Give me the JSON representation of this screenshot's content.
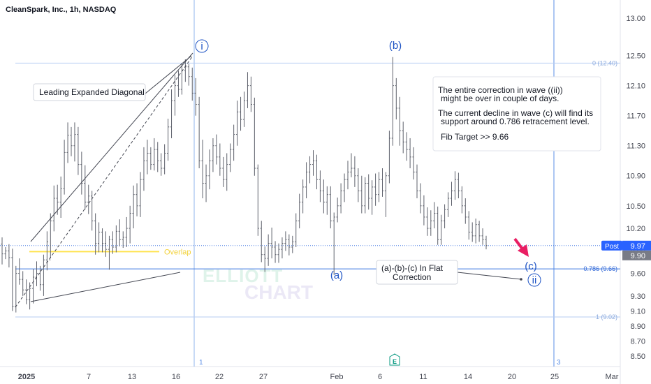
{
  "chart_data": {
    "type": "bar",
    "title": "CleanSpark, Inc., 1h, NASDAQ",
    "price_axis": {
      "ylim": [
        8.36,
        13.24
      ],
      "ticks": [
        "13.00",
        "12.50",
        "12.10",
        "11.70",
        "11.30",
        "10.90",
        "10.50",
        "10.20",
        "9.90",
        "9.60",
        "9.30",
        "9.10",
        "8.90",
        "8.70",
        "8.50"
      ],
      "tick_values": [
        13.0,
        12.5,
        12.1,
        11.7,
        11.3,
        10.9,
        10.5,
        10.2,
        9.9,
        9.6,
        9.3,
        9.1,
        8.9,
        8.7,
        8.5
      ]
    },
    "time_axis": {
      "ticks": [
        "2025",
        "7",
        "13",
        "16",
        "22",
        "27",
        "Feb",
        "6",
        "11",
        "14",
        "20",
        "25",
        "Mar"
      ],
      "bold_tick": "2025"
    },
    "price_badges": [
      {
        "label": "Post",
        "value": "9.97",
        "price": 9.97,
        "color": "#2962ff"
      },
      {
        "label": "",
        "value": "9.90",
        "price": 9.9,
        "color": "#787b86"
      }
    ],
    "fib_levels": [
      {
        "label": "0 (12.40)",
        "price": 12.4
      },
      {
        "label": "0.786 (9.66)",
        "price": 9.66
      },
      {
        "label": "1 (9.02)",
        "price": 9.02
      }
    ],
    "overlap": {
      "label": "Overlap",
      "price": 9.89,
      "color": "#ffe34d"
    },
    "wave_labels": [
      {
        "text": "i",
        "circled": true,
        "price": 12.62,
        "bar": 56
      },
      {
        "text": "(b)",
        "circled": false,
        "price": 12.62,
        "bar": 113
      },
      {
        "text": "(a)",
        "circled": false,
        "price": 9.46,
        "bar": 97
      },
      {
        "text": "(c)",
        "circled": false,
        "price": 9.57,
        "bar": 153
      },
      {
        "text": "ii",
        "circled": true,
        "price": 9.38,
        "bar": 154
      }
    ],
    "annotations": {
      "diagonal_label": "Leading Expanded Diagonal",
      "flat_label_line1": "(a)-(b)-(c) In Flat",
      "flat_label_line2": "Correction",
      "note_lines": [
        "The entire correction in wave ((ii))",
        "might be over in couple of days.",
        "The current decline in wave (c) will find its",
        "support around 0.786 retracement level.",
        "Fib Target >> 9.66"
      ],
      "vline_labels": [
        "1",
        "3"
      ],
      "earnings_marker": "E"
    },
    "watermark": {
      "line1": "ELLIOTT",
      "line2": "CHART"
    },
    "bars": [
      [
        9.99,
        10.08,
        9.72,
        9.86
      ],
      [
        9.86,
        9.95,
        9.79,
        9.9
      ],
      [
        9.9,
        9.99,
        9.68,
        9.81
      ],
      [
        9.81,
        9.93,
        9.1,
        9.16
      ],
      [
        9.16,
        9.7,
        9.08,
        9.6
      ],
      [
        9.6,
        9.8,
        9.45,
        9.52
      ],
      [
        9.52,
        9.63,
        9.3,
        9.38
      ],
      [
        9.38,
        9.52,
        9.19,
        9.25
      ],
      [
        9.25,
        9.48,
        9.12,
        9.4
      ],
      [
        9.4,
        9.66,
        9.2,
        9.55
      ],
      [
        9.55,
        9.76,
        9.43,
        9.6
      ],
      [
        9.6,
        9.7,
        9.37,
        9.45
      ],
      [
        9.45,
        9.85,
        9.3,
        9.78
      ],
      [
        9.78,
        10.16,
        9.64,
        10.02
      ],
      [
        9.78,
        10.4,
        9.8,
        10.3
      ],
      [
        10.3,
        10.77,
        10.16,
        10.6
      ],
      [
        10.6,
        10.78,
        10.38,
        10.55
      ],
      [
        10.55,
        10.89,
        10.34,
        10.73
      ],
      [
        10.73,
        11.38,
        10.65,
        11.21
      ],
      [
        11.21,
        11.61,
        11.07,
        11.44
      ],
      [
        11.44,
        11.55,
        11.16,
        11.3
      ],
      [
        11.3,
        11.61,
        11.09,
        11.45
      ],
      [
        11.45,
        11.55,
        10.91,
        11.05
      ],
      [
        11.05,
        11.22,
        10.65,
        10.8
      ],
      [
        10.8,
        11.04,
        10.45,
        10.55
      ],
      [
        10.55,
        10.78,
        10.39,
        10.63
      ],
      [
        10.63,
        10.7,
        10.17,
        10.3
      ],
      [
        10.3,
        10.4,
        9.85,
        10.0
      ],
      [
        10.0,
        10.28,
        9.88,
        10.15
      ],
      [
        10.15,
        10.2,
        9.88,
        10.0
      ],
      [
        10.0,
        10.16,
        9.82,
        9.92
      ],
      [
        9.92,
        10.1,
        9.65,
        10.05
      ],
      [
        10.05,
        10.16,
        9.86,
        9.95
      ],
      [
        9.95,
        10.24,
        9.88,
        10.16
      ],
      [
        10.16,
        10.32,
        9.96,
        10.05
      ],
      [
        10.05,
        10.16,
        9.94,
        10.08
      ],
      [
        10.08,
        10.35,
        9.95,
        10.2
      ],
      [
        10.2,
        10.5,
        10.0,
        10.4
      ],
      [
        10.4,
        10.77,
        10.2,
        10.65
      ],
      [
        10.65,
        10.8,
        10.36,
        10.5
      ],
      [
        10.5,
        10.95,
        10.35,
        10.85
      ],
      [
        10.85,
        11.28,
        10.7,
        11.1
      ],
      [
        11.1,
        11.38,
        10.92,
        11.2
      ],
      [
        11.2,
        11.28,
        10.98,
        11.05
      ],
      [
        11.05,
        11.4,
        10.97,
        11.25
      ],
      [
        11.25,
        11.35,
        10.95,
        11.1
      ],
      [
        11.1,
        11.2,
        10.9,
        11.0
      ],
      [
        11.0,
        11.32,
        10.92,
        11.2
      ],
      [
        11.2,
        11.66,
        11.1,
        11.55
      ],
      [
        11.55,
        12.05,
        11.4,
        11.9
      ],
      [
        11.9,
        12.24,
        11.7,
        12.1
      ],
      [
        12.1,
        12.3,
        11.95,
        12.05
      ],
      [
        12.05,
        12.4,
        11.98,
        12.3
      ],
      [
        12.3,
        12.45,
        12.15,
        12.35
      ],
      [
        12.35,
        12.39,
        12.1,
        12.22
      ],
      [
        12.22,
        12.34,
        11.9,
        12.0
      ],
      [
        12.0,
        12.2,
        11.7,
        11.85
      ],
      [
        11.85,
        11.95,
        11.0,
        11.1
      ],
      [
        11.1,
        11.38,
        10.6,
        10.8
      ],
      [
        10.8,
        11.05,
        10.55,
        10.9
      ],
      [
        10.9,
        11.25,
        10.72,
        11.1
      ],
      [
        11.1,
        11.4,
        10.95,
        11.3
      ],
      [
        11.3,
        11.45,
        11.05,
        11.15
      ],
      [
        11.15,
        11.33,
        10.9,
        11.0
      ],
      [
        11.0,
        11.15,
        10.75,
        10.85
      ],
      [
        10.85,
        11.2,
        10.7,
        11.05
      ],
      [
        11.05,
        11.33,
        10.95,
        11.25
      ],
      [
        11.25,
        11.58,
        11.1,
        11.45
      ],
      [
        11.45,
        11.9,
        11.3,
        11.75
      ],
      [
        11.75,
        11.95,
        11.5,
        11.65
      ],
      [
        11.65,
        12.02,
        11.55,
        11.9
      ],
      [
        11.9,
        12.28,
        11.8,
        12.1
      ],
      [
        12.1,
        12.22,
        11.75,
        11.85
      ],
      [
        11.85,
        11.94,
        10.9,
        11.0
      ],
      [
        11.0,
        11.05,
        10.1,
        10.2
      ],
      [
        10.2,
        10.3,
        9.75,
        9.85
      ],
      [
        9.85,
        9.96,
        9.62,
        9.8
      ],
      [
        9.8,
        10.12,
        9.7,
        10.0
      ],
      [
        10.0,
        10.21,
        9.8,
        9.95
      ],
      [
        9.95,
        10.03,
        9.74,
        9.85
      ],
      [
        9.85,
        10.0,
        9.74,
        9.92
      ],
      [
        9.92,
        10.08,
        9.8,
        10.0
      ],
      [
        10.0,
        10.16,
        9.9,
        10.05
      ],
      [
        10.05,
        10.12,
        9.84,
        9.95
      ],
      [
        9.95,
        10.1,
        9.87,
        10.02
      ],
      [
        10.02,
        10.4,
        9.95,
        10.3
      ],
      [
        10.3,
        10.66,
        10.2,
        10.55
      ],
      [
        10.55,
        10.85,
        10.4,
        10.75
      ],
      [
        10.75,
        11.08,
        10.6,
        10.95
      ],
      [
        10.95,
        11.16,
        10.8,
        11.05
      ],
      [
        11.05,
        11.24,
        10.9,
        11.1
      ],
      [
        11.1,
        11.18,
        10.72,
        10.85
      ],
      [
        10.85,
        10.97,
        10.55,
        10.7
      ],
      [
        10.7,
        10.85,
        10.4,
        10.55
      ],
      [
        10.55,
        10.76,
        10.38,
        10.65
      ],
      [
        10.65,
        10.76,
        10.2,
        10.3
      ],
      [
        10.3,
        10.41,
        9.58,
        10.35
      ],
      [
        10.35,
        10.61,
        10.28,
        10.5
      ],
      [
        10.5,
        10.8,
        10.4,
        10.7
      ],
      [
        10.7,
        10.93,
        10.55,
        10.85
      ],
      [
        10.85,
        11.1,
        10.72,
        10.95
      ],
      [
        10.95,
        11.2,
        10.88,
        11.0
      ],
      [
        11.0,
        11.16,
        10.75,
        10.9
      ],
      [
        10.9,
        11.0,
        10.55,
        10.7
      ],
      [
        10.7,
        10.9,
        10.4,
        10.5
      ],
      [
        10.5,
        10.88,
        10.4,
        10.8
      ],
      [
        10.8,
        10.92,
        10.45,
        10.6
      ],
      [
        10.6,
        10.84,
        10.38,
        10.75
      ],
      [
        10.75,
        10.93,
        10.5,
        10.65
      ],
      [
        10.65,
        10.95,
        10.55,
        10.85
      ],
      [
        10.85,
        11.0,
        10.62,
        10.7
      ],
      [
        10.7,
        10.95,
        10.35,
        10.9
      ],
      [
        10.9,
        11.5,
        10.8,
        11.4
      ],
      [
        11.4,
        12.48,
        11.3,
        12.1
      ],
      [
        12.1,
        12.2,
        11.65,
        11.8
      ],
      [
        11.8,
        11.95,
        11.3,
        11.5
      ],
      [
        11.5,
        11.62,
        11.2,
        11.35
      ],
      [
        11.35,
        11.48,
        11.1,
        11.25
      ],
      [
        11.25,
        11.4,
        11.0,
        11.15
      ],
      [
        11.15,
        11.28,
        10.85,
        10.95
      ],
      [
        10.95,
        11.05,
        10.6,
        10.7
      ],
      [
        10.7,
        10.8,
        10.4,
        10.5
      ],
      [
        10.5,
        10.64,
        10.24,
        10.35
      ],
      [
        10.35,
        10.48,
        10.1,
        10.2
      ],
      [
        10.2,
        10.44,
        10.1,
        10.3
      ],
      [
        10.3,
        10.55,
        10.2,
        10.4
      ],
      [
        10.4,
        10.49,
        9.98,
        10.05
      ],
      [
        10.05,
        10.38,
        9.98,
        10.3
      ],
      [
        10.3,
        10.52,
        10.2,
        10.45
      ],
      [
        10.45,
        10.68,
        10.35,
        10.6
      ],
      [
        10.6,
        10.82,
        10.5,
        10.7
      ],
      [
        10.7,
        10.96,
        10.58,
        10.85
      ],
      [
        10.85,
        10.94,
        10.6,
        10.7
      ],
      [
        10.7,
        10.76,
        10.4,
        10.5
      ],
      [
        10.5,
        10.6,
        10.26,
        10.35
      ],
      [
        10.35,
        10.43,
        10.05,
        10.15
      ],
      [
        10.15,
        10.28,
        10.02,
        10.1
      ],
      [
        10.1,
        10.33,
        10.0,
        10.25
      ],
      [
        10.25,
        10.3,
        10.02,
        10.1
      ],
      [
        10.1,
        10.2,
        9.98,
        10.05
      ],
      [
        10.05,
        10.1,
        9.92,
        9.97
      ]
    ]
  }
}
